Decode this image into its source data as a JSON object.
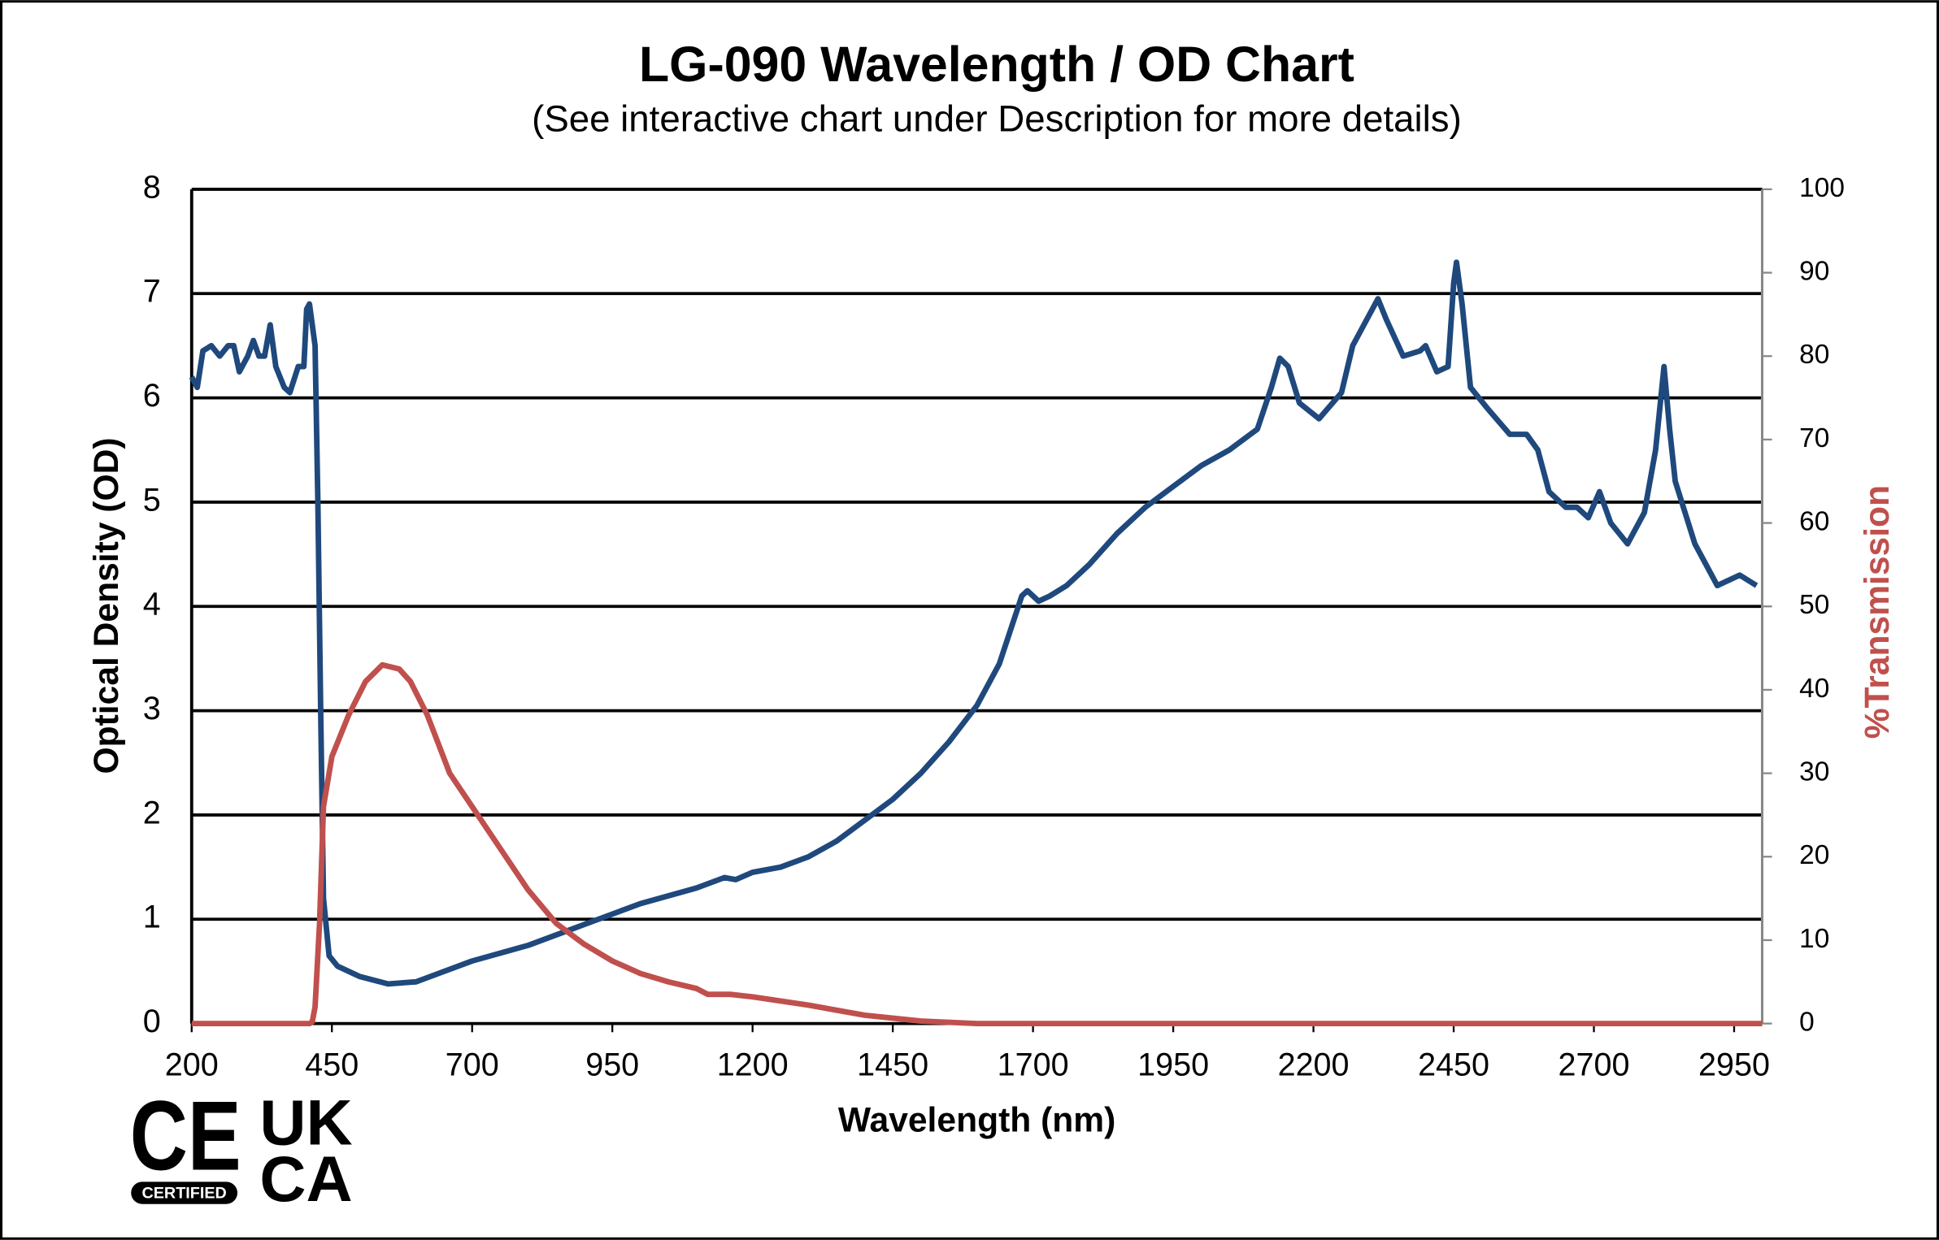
{
  "chart_data": {
    "type": "line",
    "title": "LG-090 Wavelength / OD Chart",
    "subtitle": "(See interactive chart under Description for more details)",
    "x_label": "Wavelength (nm)",
    "y_label": "Optical Density (OD)",
    "y2_label": "%Transmission",
    "xlim": [
      200,
      3000
    ],
    "xticks": [
      200,
      450,
      700,
      950,
      1200,
      1450,
      1700,
      1950,
      2200,
      2450,
      2700,
      2950
    ],
    "ylim": [
      0,
      8
    ],
    "yticks": [
      0,
      1,
      2,
      3,
      4,
      5,
      6,
      7,
      8
    ],
    "y2lim": [
      0,
      100
    ],
    "y2ticks": [
      0,
      10,
      20,
      30,
      40,
      50,
      60,
      70,
      80,
      90,
      100
    ],
    "grid": true,
    "y2_label_color": "#c0504d",
    "series": [
      {
        "color": "#1f497d",
        "axis": "y",
        "x": [
          200,
          210,
          220,
          235,
          250,
          265,
          275,
          285,
          300,
          310,
          320,
          330,
          340,
          350,
          365,
          375,
          390,
          400,
          405,
          410,
          420,
          425,
          430,
          435,
          445,
          460,
          500,
          550,
          600,
          650,
          700,
          800,
          900,
          1000,
          1100,
          1150,
          1170,
          1200,
          1250,
          1300,
          1350,
          1400,
          1450,
          1500,
          1550,
          1600,
          1640,
          1680,
          1690,
          1710,
          1730,
          1760,
          1800,
          1850,
          1900,
          1950,
          2000,
          2050,
          2100,
          2125,
          2140,
          2155,
          2175,
          2210,
          2250,
          2270,
          2300,
          2315,
          2330,
          2360,
          2390,
          2400,
          2420,
          2440,
          2450,
          2455,
          2465,
          2480,
          2510,
          2550,
          2580,
          2600,
          2620,
          2650,
          2670,
          2690,
          2710,
          2730,
          2760,
          2790,
          2810,
          2825,
          2835,
          2845,
          2880,
          2920,
          2960,
          2990
        ],
        "values": [
          6.2,
          6.1,
          6.45,
          6.5,
          6.4,
          6.5,
          6.5,
          6.25,
          6.4,
          6.55,
          6.4,
          6.4,
          6.7,
          6.3,
          6.1,
          6.05,
          6.3,
          6.3,
          6.85,
          6.9,
          6.5,
          5.0,
          3.0,
          1.2,
          0.65,
          0.55,
          0.45,
          0.38,
          0.4,
          0.5,
          0.6,
          0.75,
          0.95,
          1.15,
          1.3,
          1.4,
          1.38,
          1.45,
          1.5,
          1.6,
          1.75,
          1.95,
          2.15,
          2.4,
          2.7,
          3.05,
          3.45,
          4.1,
          4.15,
          4.05,
          4.1,
          4.2,
          4.4,
          4.7,
          4.95,
          5.15,
          5.35,
          5.5,
          5.7,
          6.1,
          6.38,
          6.3,
          5.95,
          5.8,
          6.05,
          6.5,
          6.8,
          6.95,
          6.75,
          6.4,
          6.45,
          6.5,
          6.25,
          6.3,
          7.1,
          7.3,
          6.9,
          6.1,
          5.9,
          5.65,
          5.65,
          5.5,
          5.1,
          4.95,
          4.95,
          4.85,
          5.1,
          4.8,
          4.6,
          4.9,
          5.5,
          6.3,
          5.7,
          5.2,
          4.6,
          4.2,
          4.3,
          4.2
        ]
      },
      {
        "color": "#c0504d",
        "axis": "y2",
        "x": [
          200,
          410,
          415,
          420,
          428,
          435,
          450,
          480,
          510,
          540,
          570,
          590,
          620,
          660,
          700,
          750,
          800,
          850,
          900,
          950,
          1000,
          1050,
          1100,
          1120,
          1160,
          1200,
          1300,
          1400,
          1500,
          1600,
          3000
        ],
        "values": [
          0,
          0,
          0.2,
          2,
          12,
          26,
          32,
          37,
          41,
          43,
          42.5,
          41,
          37,
          30,
          26,
          21,
          16,
          12,
          9.5,
          7.5,
          6,
          5,
          4.2,
          3.5,
          3.5,
          3.2,
          2.2,
          1,
          0.3,
          0,
          0
        ]
      }
    ],
    "logo": {
      "ce": "CE",
      "uk": "UK",
      "ca": "CA",
      "badge": "CERTIFIED"
    }
  }
}
